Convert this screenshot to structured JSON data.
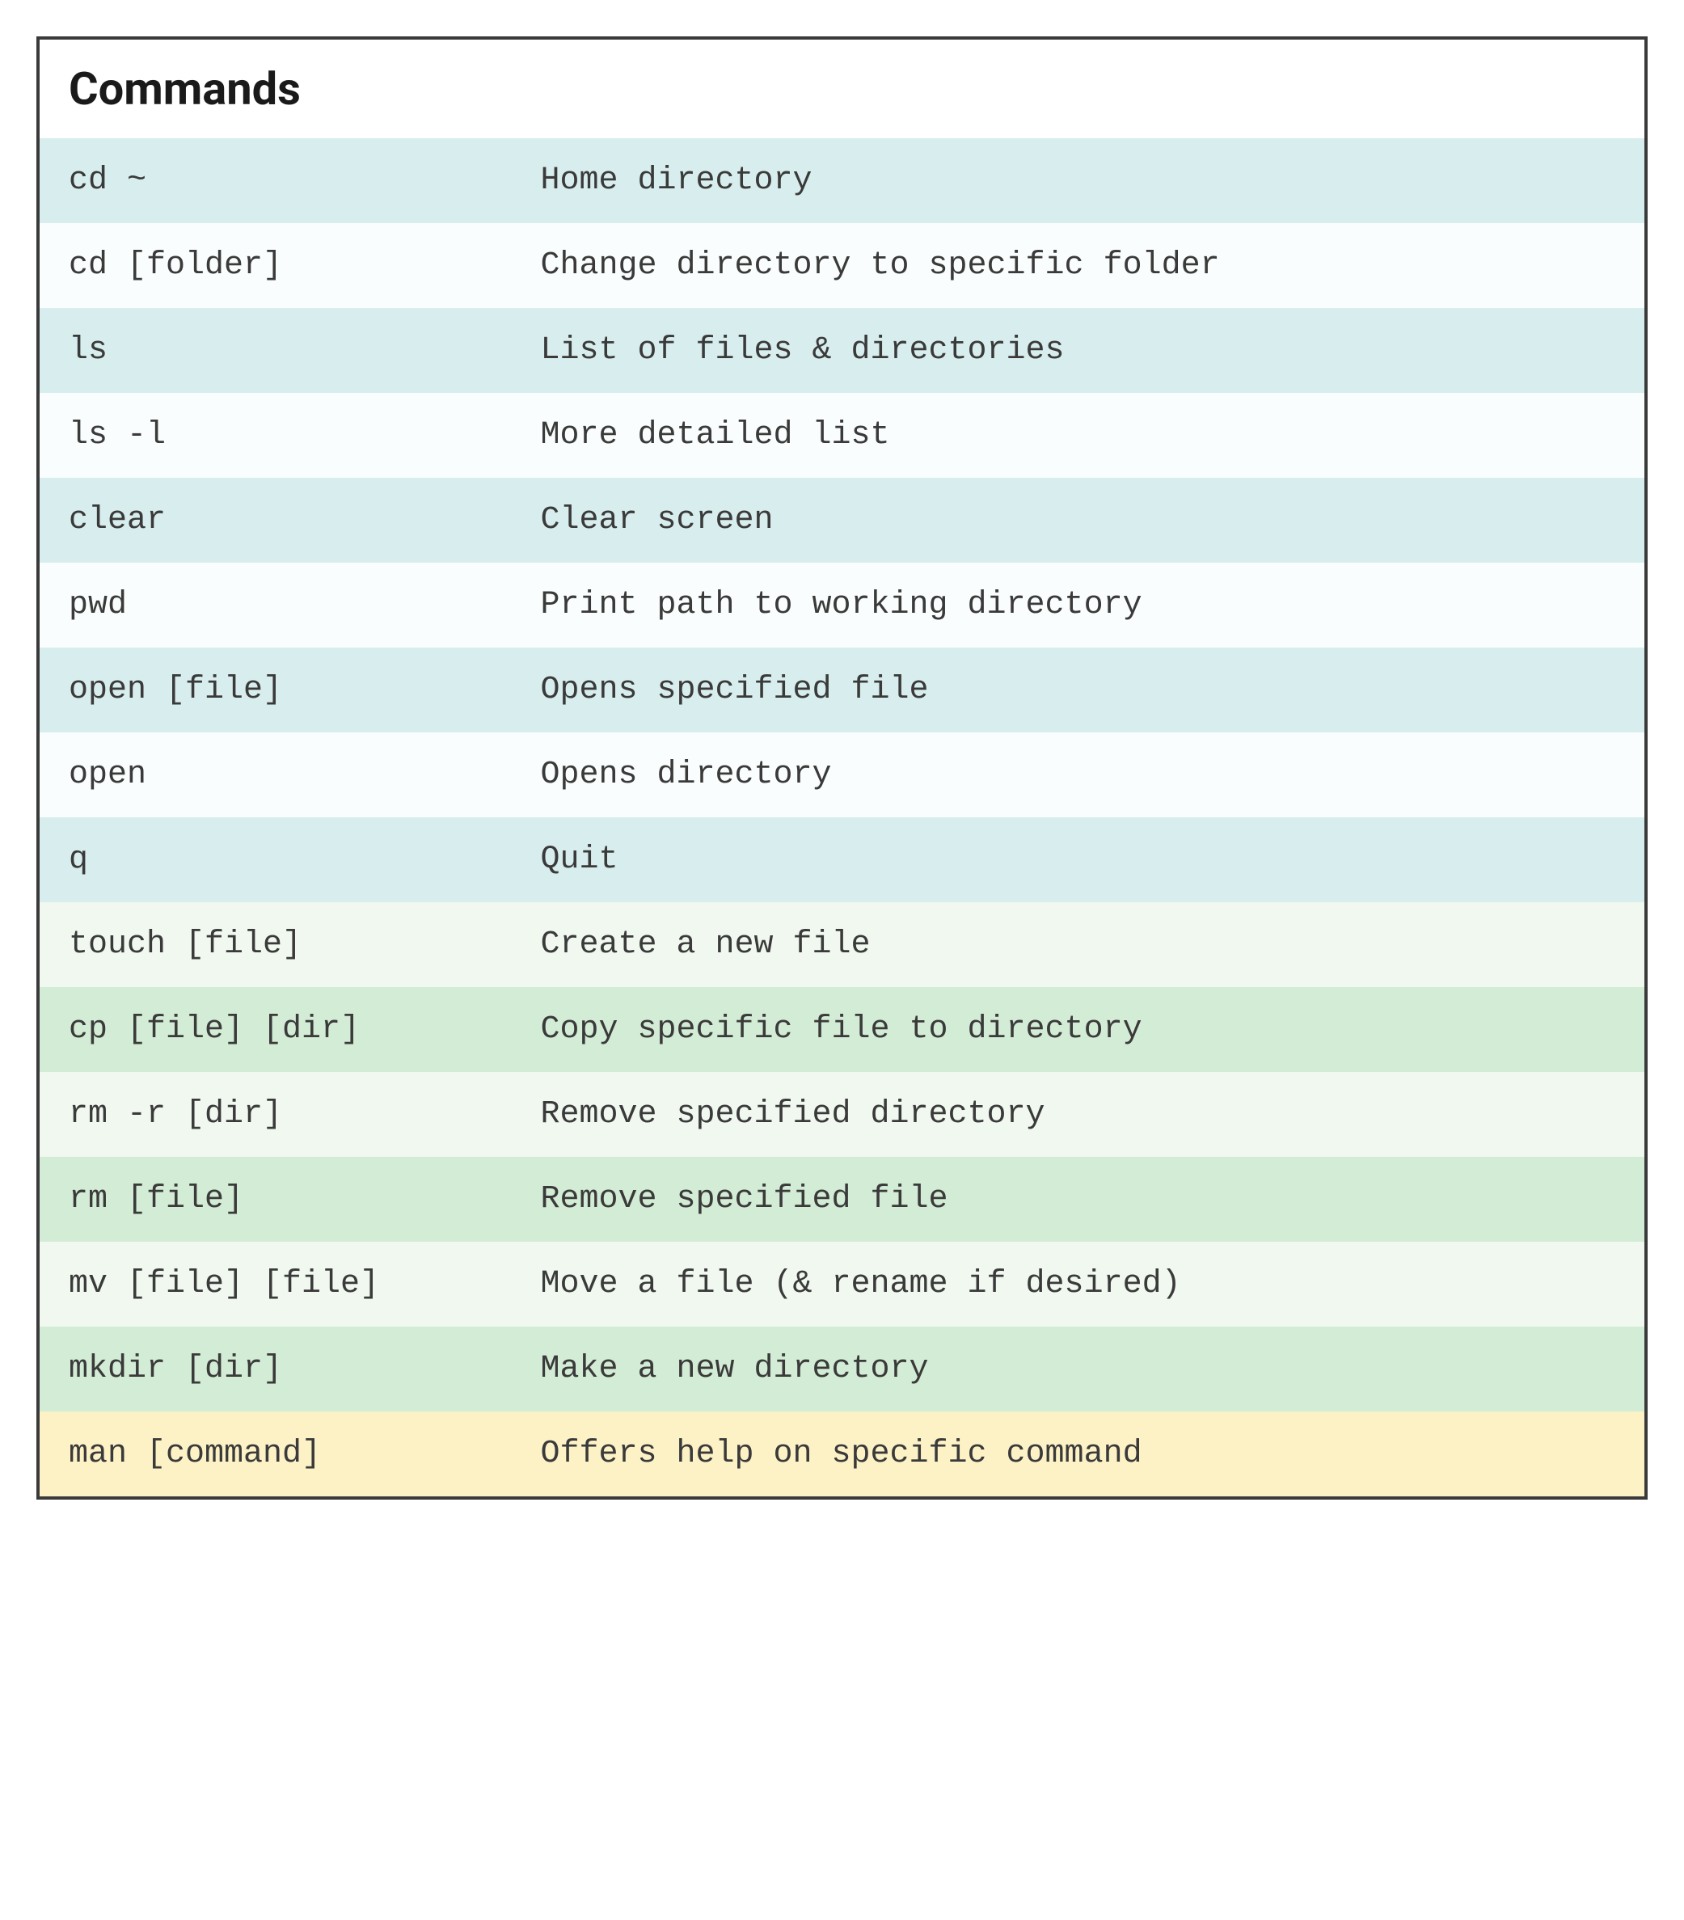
{
  "header": {
    "title": "Commands"
  },
  "colors": {
    "blue_dark": "#d8eded",
    "blue_light": "#fafdfd",
    "green_dark": "#d3ecd5",
    "green_light": "#f0f8f0",
    "yellow": "#fdf2c6",
    "border": "#3a3a3a",
    "text": "#3a3a3a",
    "header_text": "#1a1a1a",
    "background": "#ffffff"
  },
  "typography": {
    "header_font_size": 56,
    "header_font_weight": 700,
    "row_font_size": 40,
    "row_font_family": "monospace"
  },
  "table": {
    "type": "table",
    "columns": [
      "command",
      "description"
    ],
    "column_width_pct": [
      30.5,
      69.5
    ],
    "rows": [
      {
        "command": "cd ~",
        "description": "Home directory",
        "bg": "#d8eded"
      },
      {
        "command": "cd [folder]",
        "description": "Change directory to specific folder",
        "bg": "#fafdfd"
      },
      {
        "command": "ls",
        "description": "List of files & directories",
        "bg": "#d8eded"
      },
      {
        "command": "ls -l",
        "description": "More detailed list",
        "bg": "#fafdfd"
      },
      {
        "command": "clear",
        "description": "Clear screen",
        "bg": "#d8eded"
      },
      {
        "command": "pwd",
        "description": "Print path to working directory",
        "bg": "#fafdfd"
      },
      {
        "command": "open [file]",
        "description": "Opens specified file",
        "bg": "#d8eded"
      },
      {
        "command": "open",
        "description": "Opens directory",
        "bg": "#fafdfd"
      },
      {
        "command": "q",
        "description": "Quit",
        "bg": "#d8eded"
      },
      {
        "command": "touch [file]",
        "description": "Create a new file",
        "bg": "#f0f8f0"
      },
      {
        "command": "cp [file] [dir]",
        "description": "Copy specific file to directory",
        "bg": "#d3ecd5"
      },
      {
        "command": "rm -r [dir]",
        "description": "Remove specified directory",
        "bg": "#f0f8f0"
      },
      {
        "command": "rm [file]",
        "description": "Remove specified file",
        "bg": "#d3ecd5"
      },
      {
        "command": "mv [file] [file]",
        "description": "Move a file (& rename if desired)",
        "bg": "#f0f8f0"
      },
      {
        "command": "mkdir [dir]",
        "description": "Make a new directory",
        "bg": "#d3ecd5"
      },
      {
        "command": "man [command]",
        "description": "Offers help on specific command",
        "bg": "#fdf2c6"
      }
    ]
  }
}
